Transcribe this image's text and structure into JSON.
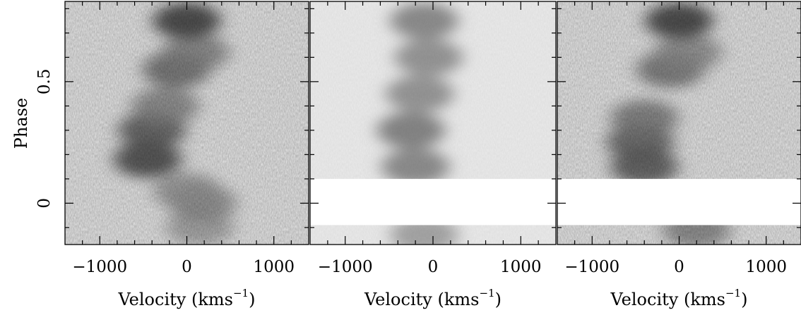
{
  "chart_data": [
    {
      "type": "heatmap",
      "panel": "observed",
      "xlabel": "Velocity (kms",
      "xlabel_superscript": "−1",
      "xlabel_close": ")",
      "ylabel": "Phase",
      "xlim": [
        -1400,
        1400
      ],
      "ylim": [
        -0.17,
        0.83
      ],
      "xticks": [
        -1000,
        0,
        1000
      ],
      "xtick_labels": [
        "−1000",
        "0",
        "1000"
      ],
      "yticks": [
        0,
        0.5
      ],
      "ytick_labels": [
        "0",
        "0.5"
      ],
      "gap_phase": null,
      "features": [
        {
          "phase": -0.1,
          "velocity": 150,
          "strength": 0.35
        },
        {
          "phase": 0.0,
          "velocity": 180,
          "strength": 0.45
        },
        {
          "phase": 0.05,
          "velocity": 0,
          "strength": 0.4
        },
        {
          "phase": 0.18,
          "velocity": -450,
          "strength": 0.85
        },
        {
          "phase": 0.3,
          "velocity": -400,
          "strength": 0.75
        },
        {
          "phase": 0.4,
          "velocity": -250,
          "strength": 0.5
        },
        {
          "phase": 0.55,
          "velocity": -120,
          "strength": 0.65
        },
        {
          "phase": 0.62,
          "velocity": 100,
          "strength": 0.5
        },
        {
          "phase": 0.75,
          "velocity": 0,
          "strength": 0.9
        }
      ]
    },
    {
      "type": "heatmap",
      "panel": "model",
      "xlabel": "Velocity (kms",
      "xlabel_superscript": "−1",
      "xlabel_close": ")",
      "xlim": [
        -1400,
        1400
      ],
      "ylim": [
        -0.17,
        0.83
      ],
      "xticks": [
        -1000,
        0,
        1000
      ],
      "xtick_labels": [
        "−1000",
        "0",
        "1000"
      ],
      "gap_phase": [
        -0.09,
        0.1
      ],
      "features": [
        {
          "phase": 0.15,
          "velocity": -200,
          "strength": 0.55
        },
        {
          "phase": 0.3,
          "velocity": -250,
          "strength": 0.6
        },
        {
          "phase": 0.45,
          "velocity": -150,
          "strength": 0.5
        },
        {
          "phase": 0.6,
          "velocity": -50,
          "strength": 0.5
        },
        {
          "phase": 0.75,
          "velocity": -100,
          "strength": 0.55
        },
        {
          "phase": -0.13,
          "velocity": -100,
          "strength": 0.4
        }
      ]
    },
    {
      "type": "heatmap",
      "panel": "residual",
      "xlabel": "Velocity (kms",
      "xlabel_superscript": "−1",
      "xlabel_close": ")",
      "xlim": [
        -1400,
        1400
      ],
      "ylim": [
        -0.17,
        0.83
      ],
      "xticks": [
        -1000,
        0,
        1000
      ],
      "xtick_labels": [
        "−1000",
        "0",
        "1000"
      ],
      "gap_phase": [
        -0.09,
        0.1
      ],
      "features": [
        {
          "phase": 0.15,
          "velocity": -400,
          "strength": 0.75
        },
        {
          "phase": 0.25,
          "velocity": -450,
          "strength": 0.7
        },
        {
          "phase": 0.35,
          "velocity": -400,
          "strength": 0.55
        },
        {
          "phase": 0.55,
          "velocity": -100,
          "strength": 0.6
        },
        {
          "phase": 0.62,
          "velocity": 100,
          "strength": 0.45
        },
        {
          "phase": 0.75,
          "velocity": 0,
          "strength": 0.9
        },
        {
          "phase": -0.11,
          "velocity": 200,
          "strength": 0.5
        }
      ]
    }
  ]
}
